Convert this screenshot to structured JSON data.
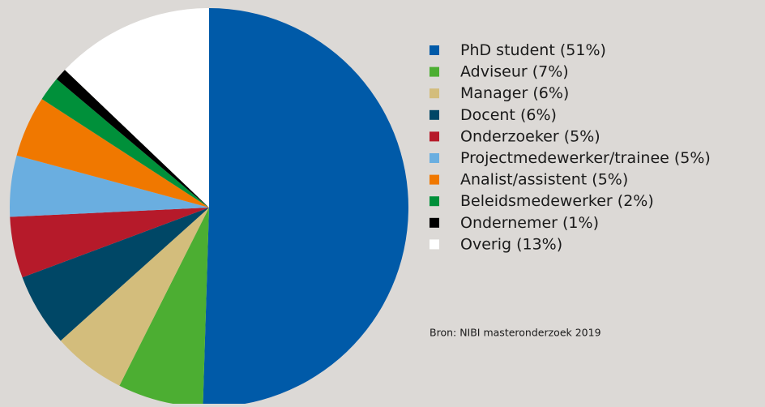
{
  "chart_data": {
    "type": "pie",
    "categories": [
      "PhD student",
      "Adviseur",
      "Manager",
      "Docent",
      "Onderzoeker",
      "Projectmedewerker/trainee",
      "Analist/assistent",
      "Beleidsmedewerker",
      "Ondernemer",
      "Overig"
    ],
    "values": [
      51,
      7,
      6,
      6,
      5,
      5,
      5,
      2,
      1,
      13
    ],
    "value_labels": [
      "(51%)",
      "(7%)",
      "(6%)",
      "(6%)",
      "(5%)",
      "(5%)",
      "(5%)",
      "(2%)",
      "(1%)",
      "(13%)"
    ],
    "colors": [
      "#005aa8",
      "#4cae32",
      "#d3bd7c",
      "#004766",
      "#b61a2a",
      "#6aaee0",
      "#f07800",
      "#00903a",
      "#000000",
      "#ffffff"
    ],
    "legend": "right",
    "source": "Bron: NIBI masteronderzoek 2019"
  }
}
